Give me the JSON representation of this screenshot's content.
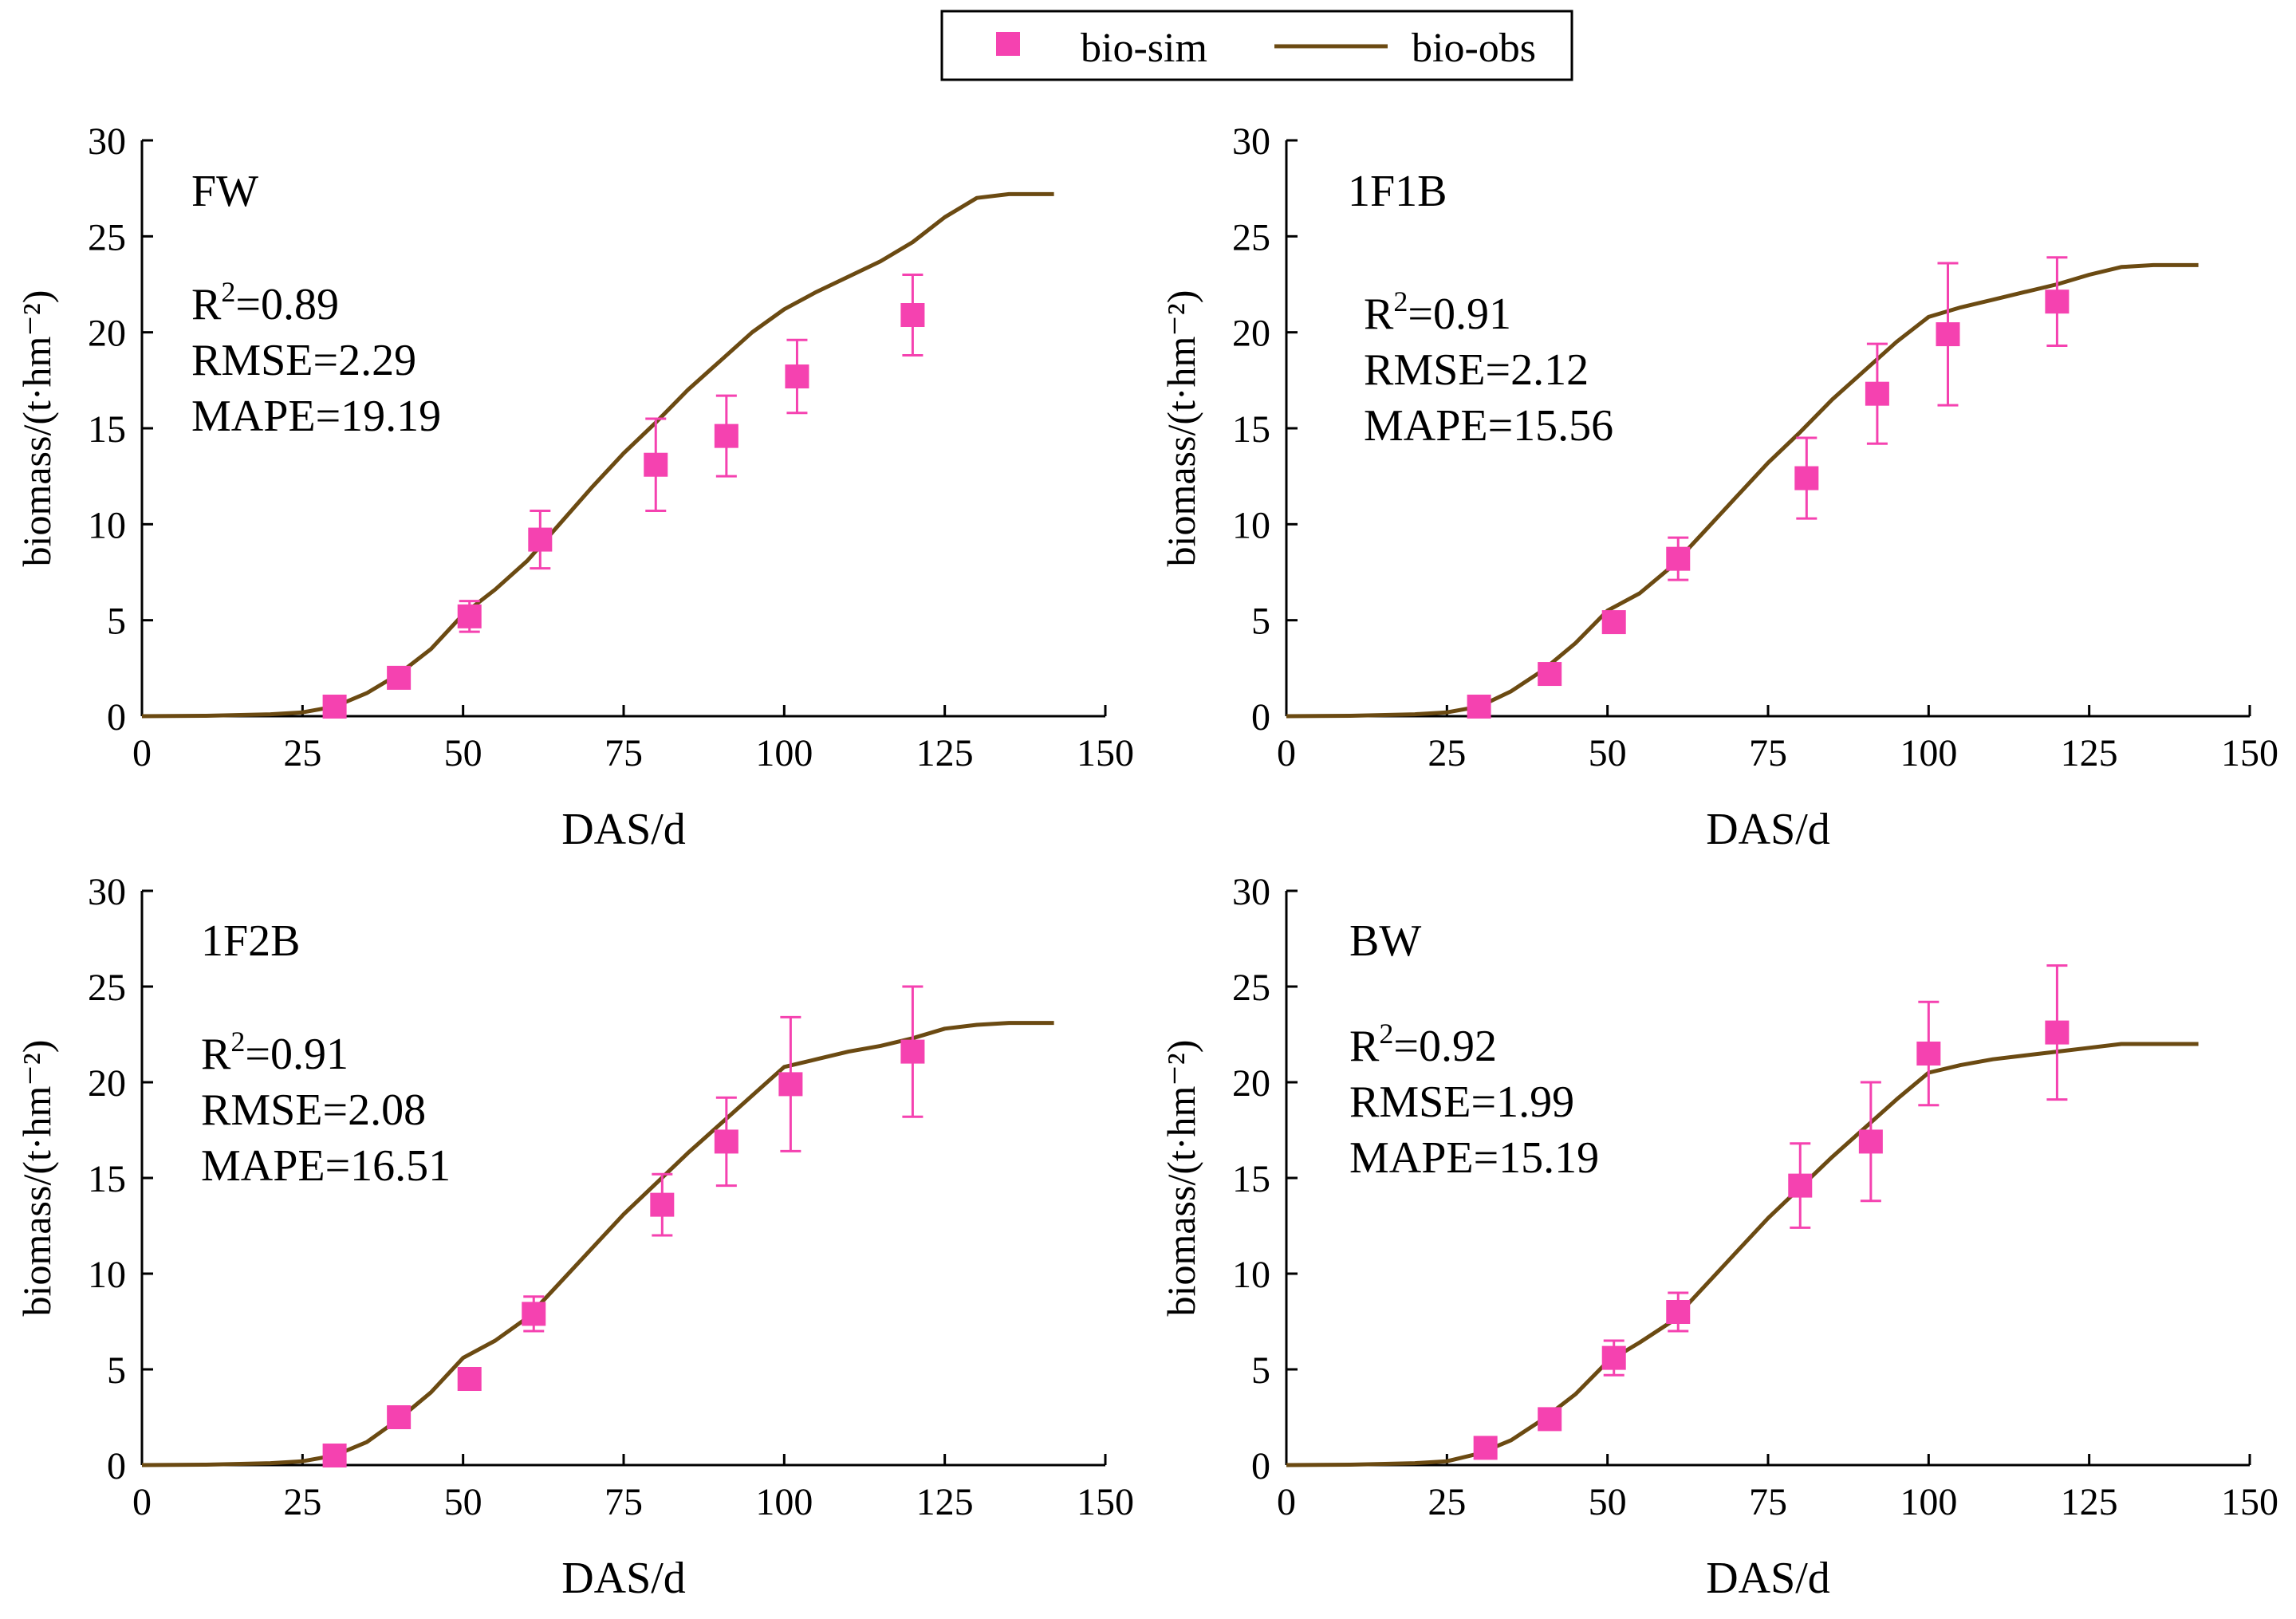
{
  "legend": {
    "sim_label": "bio-sim",
    "obs_label": "bio-obs"
  },
  "colors": {
    "sim": "#f542b0",
    "obs": "#6b4a12",
    "axis": "#000000"
  },
  "chart_data": [
    {
      "type": "line",
      "panel": "FW",
      "xlabel": "DAS/d",
      "ylabel": "biomass/(t·hm⁻²)",
      "xlim": [
        0,
        150
      ],
      "ylim": [
        0,
        30
      ],
      "xticks": [
        "0",
        "25",
        "50",
        "75",
        "100",
        "125",
        "150"
      ],
      "yticks": [
        "0",
        "5",
        "10",
        "15",
        "20",
        "25",
        "30"
      ],
      "stats": {
        "r2_label": "R",
        "r2_sup": "2",
        "r2_value": "=0.89",
        "rmse": "RMSE=2.29",
        "mape": "MAPE=19.19"
      },
      "obs_series": {
        "name": "bio-obs",
        "x": [
          0,
          10,
          20,
          25,
          30,
          35,
          40,
          45,
          50,
          55,
          60,
          65,
          70,
          75,
          80,
          85,
          90,
          95,
          100,
          105,
          110,
          115,
          120,
          125,
          130,
          135,
          142
        ],
        "y": [
          0,
          0.02,
          0.1,
          0.2,
          0.5,
          1.2,
          2.2,
          3.5,
          5.3,
          6.6,
          8.1,
          10.0,
          11.9,
          13.7,
          15.3,
          17.0,
          18.5,
          20.0,
          21.2,
          22.1,
          22.9,
          23.7,
          24.7,
          26.0,
          27.0,
          27.2,
          27.2
        ]
      },
      "sim_series": {
        "name": "bio-sim",
        "x": [
          30,
          40,
          51,
          62,
          80,
          91,
          102,
          120
        ],
        "y": [
          0.5,
          2.0,
          5.2,
          9.2,
          13.1,
          14.6,
          17.7,
          20.9
        ],
        "err": [
          0.2,
          0.4,
          0.8,
          1.5,
          2.4,
          2.1,
          1.9,
          2.1
        ]
      }
    },
    {
      "type": "line",
      "panel": "1F1B",
      "xlabel": "DAS/d",
      "ylabel": "biomass/(t·hm⁻²)",
      "xlim": [
        0,
        150
      ],
      "ylim": [
        0,
        30
      ],
      "xticks": [
        "0",
        "25",
        "50",
        "75",
        "100",
        "125",
        "150"
      ],
      "yticks": [
        "0",
        "5",
        "10",
        "15",
        "20",
        "25",
        "30"
      ],
      "stats": {
        "r2_label": "R",
        "r2_sup": "2",
        "r2_value": "=0.91",
        "rmse": "RMSE=2.12",
        "mape": "MAPE=15.56"
      },
      "obs_series": {
        "name": "bio-obs",
        "x": [
          0,
          10,
          20,
          25,
          30,
          35,
          40,
          45,
          50,
          55,
          60,
          65,
          70,
          75,
          80,
          85,
          90,
          95,
          100,
          105,
          110,
          115,
          120,
          125,
          130,
          135,
          142
        ],
        "y": [
          0,
          0.02,
          0.1,
          0.2,
          0.5,
          1.3,
          2.4,
          3.8,
          5.5,
          6.4,
          7.8,
          9.6,
          11.4,
          13.2,
          14.8,
          16.5,
          18.0,
          19.5,
          20.8,
          21.3,
          21.7,
          22.1,
          22.5,
          23.0,
          23.4,
          23.5,
          23.5
        ]
      },
      "sim_series": {
        "name": "bio-sim",
        "x": [
          30,
          41,
          51,
          61,
          81,
          92,
          103,
          120
        ],
        "y": [
          0.5,
          2.2,
          4.9,
          8.2,
          12.4,
          16.8,
          19.9,
          21.6
        ],
        "err": [
          0.2,
          0.3,
          0.5,
          1.1,
          2.1,
          2.6,
          3.7,
          2.3
        ]
      }
    },
    {
      "type": "line",
      "panel": "1F2B",
      "xlabel": "DAS/d",
      "ylabel": "biomass/(t·hm⁻²)",
      "xlim": [
        0,
        150
      ],
      "ylim": [
        0,
        30
      ],
      "xticks": [
        "0",
        "25",
        "50",
        "75",
        "100",
        "125",
        "150"
      ],
      "yticks": [
        "0",
        "5",
        "10",
        "15",
        "20",
        "25",
        "30"
      ],
      "stats": {
        "r2_label": "R",
        "r2_sup": "2",
        "r2_value": "=0.91",
        "rmse": "RMSE=2.08",
        "mape": "MAPE=16.51"
      },
      "obs_series": {
        "name": "bio-obs",
        "x": [
          0,
          10,
          20,
          25,
          30,
          35,
          40,
          45,
          50,
          55,
          60,
          65,
          70,
          75,
          80,
          85,
          90,
          95,
          100,
          105,
          110,
          115,
          120,
          125,
          130,
          135,
          142
        ],
        "y": [
          0,
          0.02,
          0.1,
          0.2,
          0.5,
          1.2,
          2.4,
          3.8,
          5.6,
          6.5,
          7.7,
          9.5,
          11.3,
          13.1,
          14.7,
          16.3,
          17.8,
          19.3,
          20.8,
          21.2,
          21.6,
          21.9,
          22.3,
          22.8,
          23.0,
          23.1,
          23.1
        ]
      },
      "sim_series": {
        "name": "bio-sim",
        "x": [
          30,
          40,
          51,
          61,
          81,
          91,
          101,
          120
        ],
        "y": [
          0.5,
          2.5,
          4.5,
          7.9,
          13.6,
          16.9,
          19.9,
          21.6
        ],
        "err": [
          0.2,
          0.3,
          0.4,
          0.9,
          1.6,
          2.3,
          3.5,
          3.4
        ]
      }
    },
    {
      "type": "line",
      "panel": "BW",
      "xlabel": "DAS/d",
      "ylabel": "biomass/(t·hm⁻²)",
      "xlim": [
        0,
        150
      ],
      "ylim": [
        0,
        30
      ],
      "xticks": [
        "0",
        "25",
        "50",
        "75",
        "100",
        "125",
        "150"
      ],
      "yticks": [
        "0",
        "5",
        "10",
        "15",
        "20",
        "25",
        "30"
      ],
      "stats": {
        "r2_label": "R",
        "r2_sup": "2",
        "r2_value": "=0.92",
        "rmse": "RMSE=1.99",
        "mape": "MAPE=15.19"
      },
      "obs_series": {
        "name": "bio-obs",
        "x": [
          0,
          10,
          20,
          25,
          30,
          35,
          40,
          45,
          50,
          55,
          60,
          65,
          70,
          75,
          80,
          85,
          90,
          95,
          100,
          105,
          110,
          115,
          120,
          125,
          130,
          135,
          142
        ],
        "y": [
          0,
          0.02,
          0.1,
          0.2,
          0.6,
          1.3,
          2.4,
          3.7,
          5.4,
          6.4,
          7.5,
          9.3,
          11.1,
          12.9,
          14.5,
          16.1,
          17.6,
          19.1,
          20.5,
          20.9,
          21.2,
          21.4,
          21.6,
          21.8,
          22.0,
          22.0,
          22.0
        ]
      },
      "sim_series": {
        "name": "bio-sim",
        "x": [
          31,
          41,
          51,
          61,
          80,
          91,
          100,
          120
        ],
        "y": [
          0.9,
          2.4,
          5.6,
          8.0,
          14.6,
          16.9,
          21.5,
          22.6
        ],
        "err": [
          0.2,
          0.3,
          0.9,
          1.0,
          2.2,
          3.1,
          2.7,
          3.5
        ]
      }
    }
  ]
}
